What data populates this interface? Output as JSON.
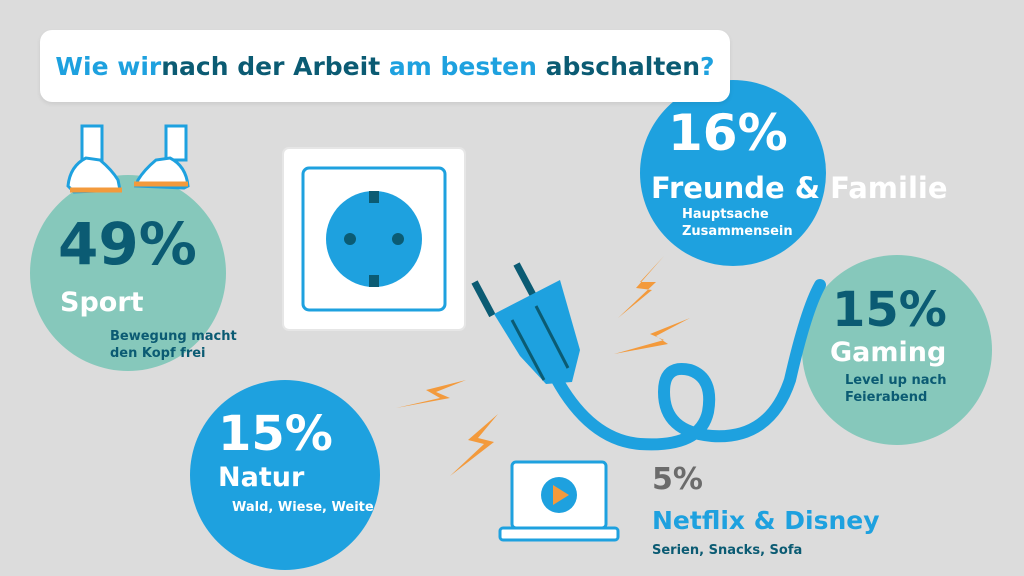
{
  "title": {
    "parts": [
      {
        "text": "Wie wir ",
        "tone": "light"
      },
      {
        "text": "nach der Arbeit",
        "tone": "dark"
      },
      {
        "text": " am besten ",
        "tone": "light"
      },
      {
        "text": "abschalten",
        "tone": "dark"
      },
      {
        "text": "?",
        "tone": "light"
      }
    ]
  },
  "colors": {
    "background": "#dcdcdc",
    "teal": "#86c8bb",
    "blue": "#1ea1df",
    "dark_teal": "#0b5b73",
    "orange": "#f39a3c",
    "gray_text": "#6b6b6b"
  },
  "categories": [
    {
      "percent": "49%",
      "label": "Sport",
      "desc": [
        "Bewegung macht",
        "den Kopf frei"
      ]
    },
    {
      "percent": "16%",
      "label": "Freunde & Familie",
      "desc": [
        "Hauptsache",
        "Zusammensein"
      ]
    },
    {
      "percent": "15%",
      "label": "Gaming",
      "desc": [
        "Level up nach",
        "Feierabend"
      ]
    },
    {
      "percent": "15%",
      "label": "Natur",
      "desc": [
        "Wald, Wiese, Weite"
      ]
    },
    {
      "percent": "5%",
      "label": "Netflix & Disney",
      "desc": [
        "Serien, Snacks, Sofa"
      ]
    }
  ],
  "icons": [
    "sneakers-icon",
    "wall-socket-icon",
    "unplugged-plug-icon",
    "lightning-bolt-icon",
    "laptop-play-icon"
  ]
}
